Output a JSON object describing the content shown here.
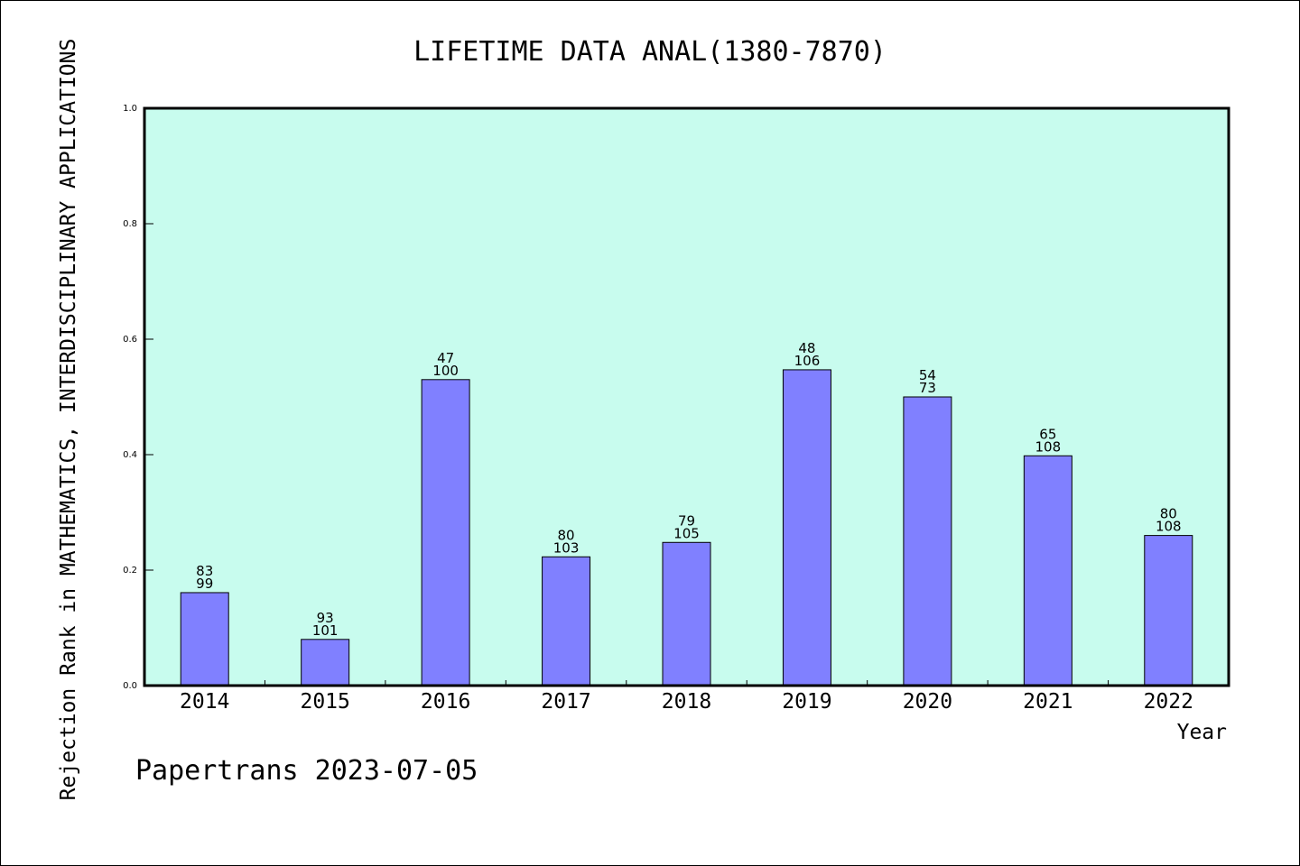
{
  "chart_data": {
    "type": "bar",
    "title": "LIFETIME DATA ANAL(1380-7870)",
    "xlabel": "Year",
    "ylabel": "Rejection Rank in MATHEMATICS, INTERDISCIPLINARY APPLICATIONS",
    "ylim": [
      0,
      1
    ],
    "yticks": [
      "0.0",
      "0.2",
      "0.4",
      "0.6",
      "0.8",
      "1.0"
    ],
    "grid": false,
    "categories": [
      "2014",
      "2015",
      "2016",
      "2017",
      "2018",
      "2019",
      "2020",
      "2021",
      "2022"
    ],
    "values": [
      0.161,
      0.08,
      0.53,
      0.223,
      0.248,
      0.547,
      0.5,
      0.398,
      0.26
    ],
    "labels_top": [
      "83",
      "93",
      "47",
      "80",
      "79",
      "48",
      "54",
      "65",
      "80"
    ],
    "labels_bottom": [
      "99",
      "101",
      "100",
      "103",
      "105",
      "106",
      "73",
      "108",
      "108"
    ],
    "colors": {
      "plot_bg": "#c8fcee",
      "bar": "#8080ff",
      "bar_edge": "#000000"
    }
  },
  "footer": "Papertrans 2023-07-05"
}
